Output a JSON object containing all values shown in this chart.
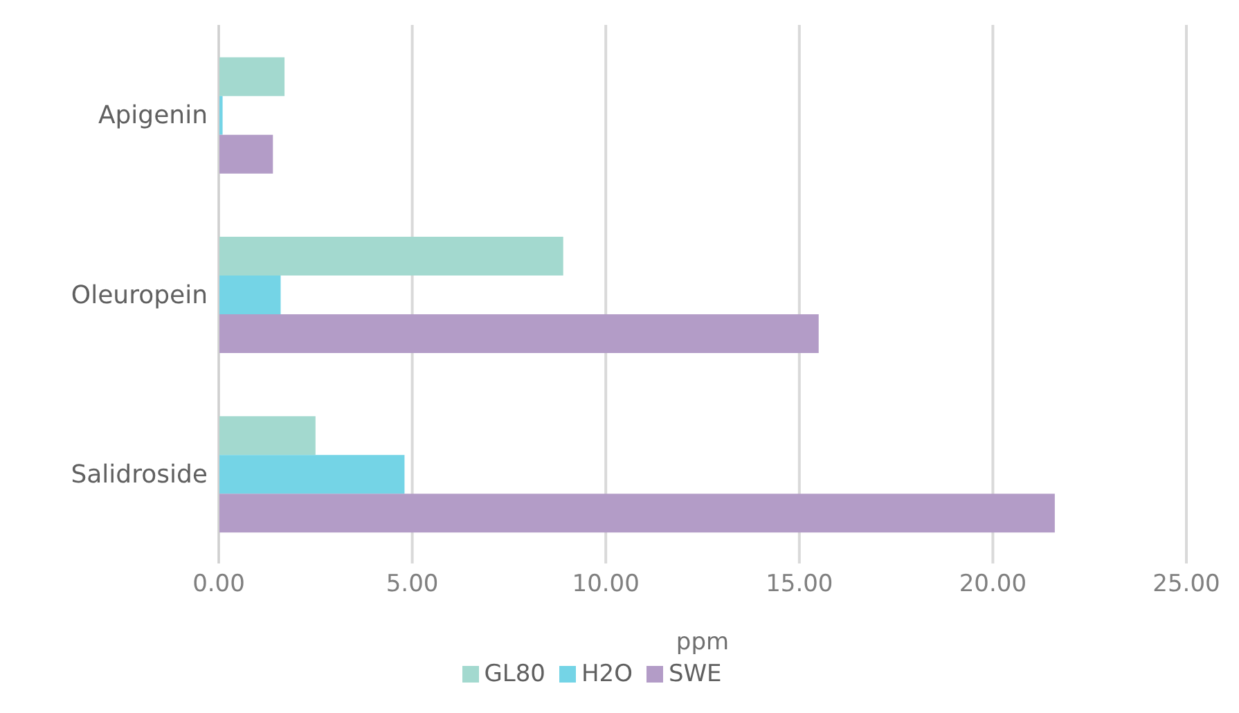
{
  "chart_data": {
    "type": "bar",
    "orientation": "horizontal",
    "xlabel": "ppm",
    "categories": [
      "Apigenin",
      "Oleuropein",
      "Salidroside"
    ],
    "series": [
      {
        "name": "GL80",
        "color": "#a3d9cf",
        "values": [
          1.7,
          8.9,
          2.5
        ]
      },
      {
        "name": "H2O",
        "color": "#74d4e6",
        "values": [
          0.1,
          1.6,
          4.8
        ]
      },
      {
        "name": "SWE",
        "color": "#b39cc7",
        "values": [
          1.4,
          15.5,
          21.6
        ]
      }
    ],
    "xlim": [
      0,
      25
    ],
    "xticks": [
      {
        "value": 0,
        "label": "0.00"
      },
      {
        "value": 5,
        "label": "5.00"
      },
      {
        "value": 10,
        "label": "10.00"
      },
      {
        "value": 15,
        "label": "15.00"
      },
      {
        "value": 20,
        "label": "20.00"
      },
      {
        "value": 25,
        "label": "25.00"
      }
    ],
    "grid": "x",
    "legend": "bottom"
  }
}
